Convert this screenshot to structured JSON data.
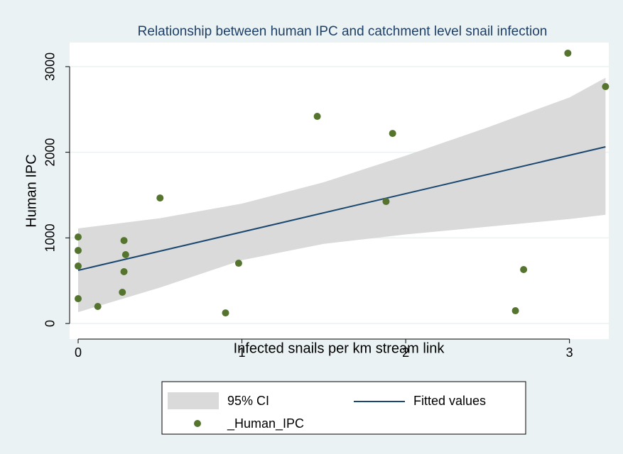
{
  "chart_data": {
    "type": "scatter",
    "title": "Relationship between human IPC and catchment level snail infection",
    "x_label": "Infected snails per km stream link",
    "y_label": "Human IPC",
    "xlim": [
      -0.052,
      3.24
    ],
    "ylim": [
      -182,
      3281
    ],
    "xticks": [
      0,
      1,
      2,
      3
    ],
    "yticks": [
      0,
      1000,
      2000,
      3000
    ],
    "grid": true,
    "legend": "bottom",
    "series": [
      {
        "name": "95% CI",
        "color": "#dadada",
        "x": [
          0,
          0.5,
          1,
          1.5,
          2,
          2.5,
          3,
          3.22
        ],
        "lower": [
          133,
          420,
          740,
          930,
          1040,
          1130,
          1220,
          1270
        ],
        "upper": [
          1110,
          1230,
          1400,
          1650,
          1960,
          2290,
          2640,
          2870
        ]
      },
      {
        "name": "Fitted values",
        "color": "#1a476f",
        "x": [
          0,
          3.22
        ],
        "y": [
          621,
          2063
        ]
      },
      {
        "name": "_Human_IPC",
        "color": "#55752f",
        "x": [
          0,
          0,
          0,
          0,
          0.12,
          0.28,
          0.29,
          0.28,
          0.27,
          0.5,
          0.98,
          0.9,
          1.46,
          1.92,
          1.88,
          2.72,
          2.67,
          2.99,
          3.22
        ],
        "y": [
          1010,
          853,
          671,
          290,
          199,
          969,
          804,
          605,
          365,
          1466,
          704,
          124,
          2419,
          2220,
          1425,
          630,
          149,
          3157,
          2767
        ]
      }
    ]
  }
}
